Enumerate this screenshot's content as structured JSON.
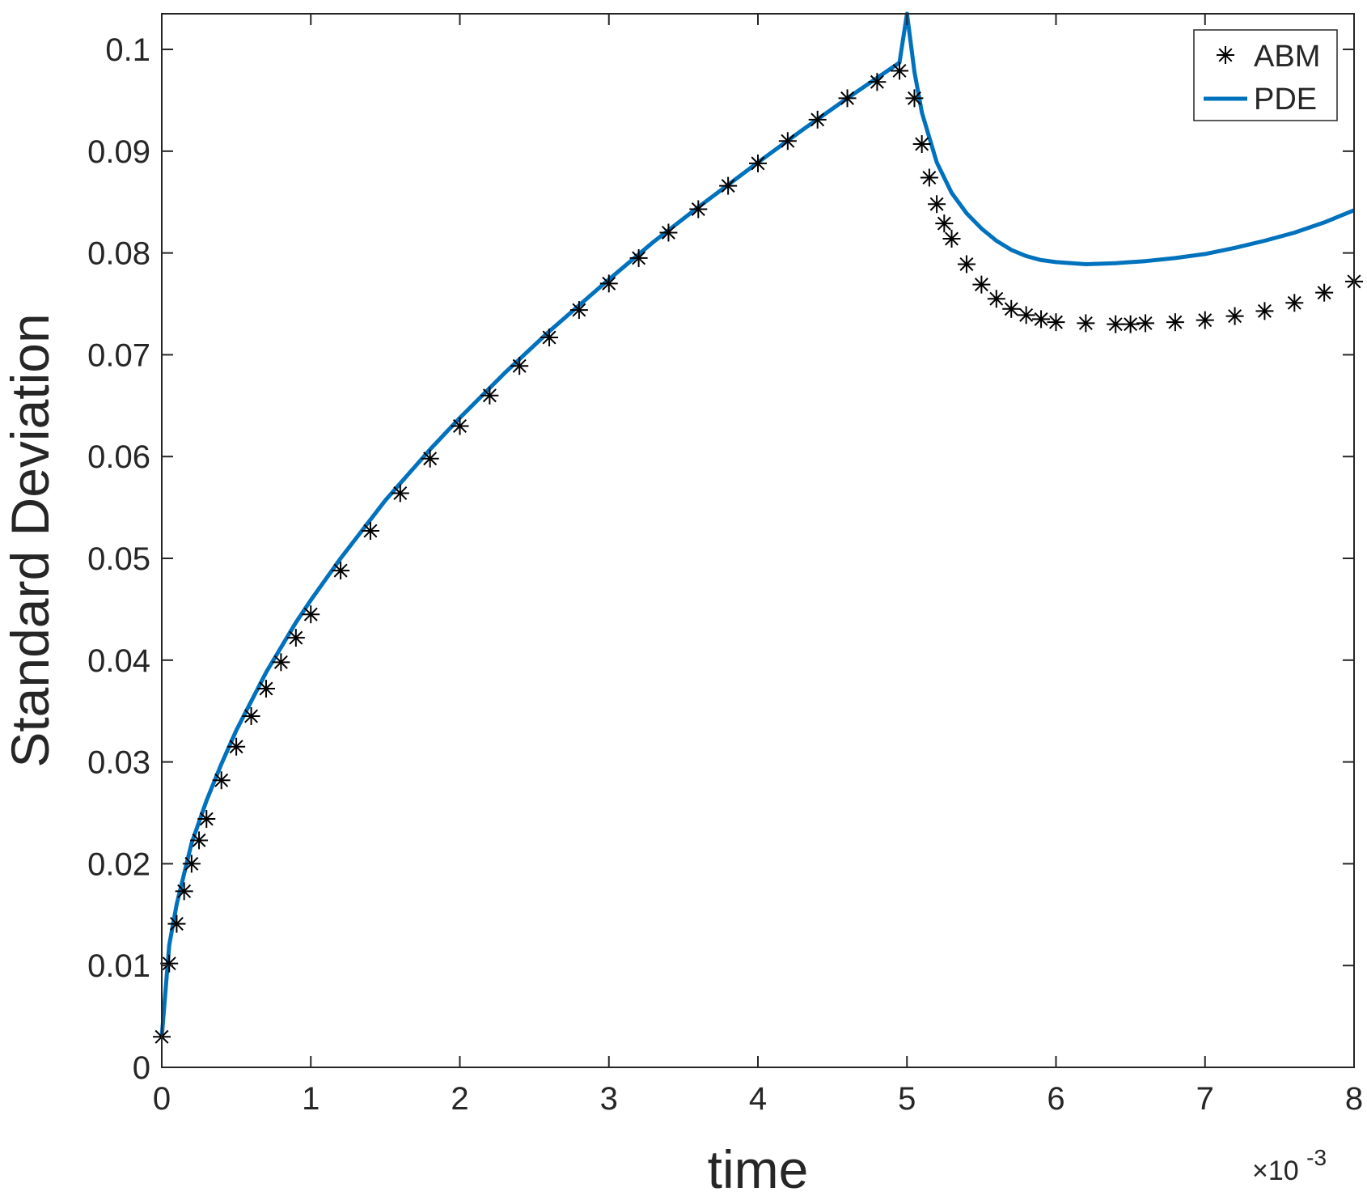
{
  "chart_data": {
    "type": "line",
    "xlabel": "time",
    "ylabel": "Standard Deviation",
    "x_exponent_label": "×10",
    "x_exponent_power": "-3",
    "xlim": [
      0,
      8
    ],
    "ylim": [
      0,
      0.1035
    ],
    "x_ticks": [
      0,
      1,
      2,
      3,
      4,
      5,
      6,
      7,
      8
    ],
    "x_tick_labels": [
      "0",
      "1",
      "2",
      "3",
      "4",
      "5",
      "6",
      "7",
      "8"
    ],
    "y_ticks": [
      0,
      0.01,
      0.02,
      0.03,
      0.04,
      0.05,
      0.06,
      0.07,
      0.08,
      0.09,
      0.1
    ],
    "y_tick_labels": [
      "0",
      "0.01",
      "0.02",
      "0.03",
      "0.04",
      "0.05",
      "0.06",
      "0.07",
      "0.08",
      "0.09",
      "0.1"
    ],
    "grid": false,
    "legend_position": "top-right",
    "colors": {
      "ABM": "#000000",
      "PDE": "#0072BD",
      "axis": "#262626"
    },
    "series": [
      {
        "name": "ABM",
        "style": "markers-asterisk",
        "x": [
          0,
          0.05,
          0.1,
          0.15,
          0.2,
          0.25,
          0.3,
          0.4,
          0.5,
          0.6,
          0.7,
          0.8,
          0.9,
          1.0,
          1.2,
          1.4,
          1.6,
          1.8,
          2.0,
          2.2,
          2.4,
          2.6,
          2.8,
          3.0,
          3.2,
          3.4,
          3.6,
          3.8,
          4.0,
          4.2,
          4.4,
          4.6,
          4.8,
          4.95,
          5.05,
          5.1,
          5.15,
          5.2,
          5.25,
          5.3,
          5.4,
          5.5,
          5.6,
          5.7,
          5.8,
          5.9,
          6.0,
          6.2,
          6.4,
          6.5,
          6.6,
          6.8,
          7.0,
          7.2,
          7.4,
          7.6,
          7.8,
          8.0
        ],
        "y": [
          0.003,
          0.0102,
          0.0141,
          0.0173,
          0.02,
          0.0223,
          0.0244,
          0.0282,
          0.0315,
          0.0345,
          0.0372,
          0.0398,
          0.0422,
          0.0445,
          0.0488,
          0.0527,
          0.0564,
          0.0598,
          0.063,
          0.066,
          0.0689,
          0.0717,
          0.0744,
          0.077,
          0.0795,
          0.082,
          0.0843,
          0.0866,
          0.0888,
          0.091,
          0.0931,
          0.0952,
          0.0968,
          0.0979,
          0.0952,
          0.0907,
          0.0874,
          0.0848,
          0.0829,
          0.0814,
          0.0789,
          0.0769,
          0.0755,
          0.0745,
          0.0739,
          0.0735,
          0.0732,
          0.0731,
          0.073,
          0.073,
          0.0731,
          0.0732,
          0.0734,
          0.0738,
          0.0743,
          0.0751,
          0.0761,
          0.0772
        ]
      },
      {
        "name": "PDE",
        "style": "line",
        "x": [
          0,
          0.05,
          0.1,
          0.2,
          0.3,
          0.4,
          0.5,
          0.7,
          0.9,
          1.0,
          1.2,
          1.5,
          1.8,
          2.0,
          2.3,
          2.6,
          3.0,
          3.3,
          3.6,
          4.0,
          4.3,
          4.6,
          4.9,
          4.95,
          5.0,
          5.05,
          5.1,
          5.2,
          5.3,
          5.4,
          5.5,
          5.6,
          5.7,
          5.8,
          5.9,
          6.0,
          6.2,
          6.4,
          6.6,
          6.8,
          7.0,
          7.2,
          7.4,
          7.6,
          7.8,
          8.0
        ],
        "y": [
          0.003,
          0.012,
          0.016,
          0.022,
          0.0262,
          0.0298,
          0.0331,
          0.0388,
          0.0437,
          0.0459,
          0.05,
          0.0557,
          0.0607,
          0.0638,
          0.0682,
          0.0723,
          0.0774,
          0.0811,
          0.0845,
          0.0889,
          0.0921,
          0.0952,
          0.0982,
          0.0987,
          0.1035,
          0.0978,
          0.0938,
          0.0889,
          0.0859,
          0.0839,
          0.0824,
          0.0812,
          0.0803,
          0.0797,
          0.0793,
          0.0791,
          0.0789,
          0.079,
          0.0792,
          0.0795,
          0.0799,
          0.0805,
          0.0812,
          0.082,
          0.083,
          0.0842
        ]
      }
    ]
  }
}
